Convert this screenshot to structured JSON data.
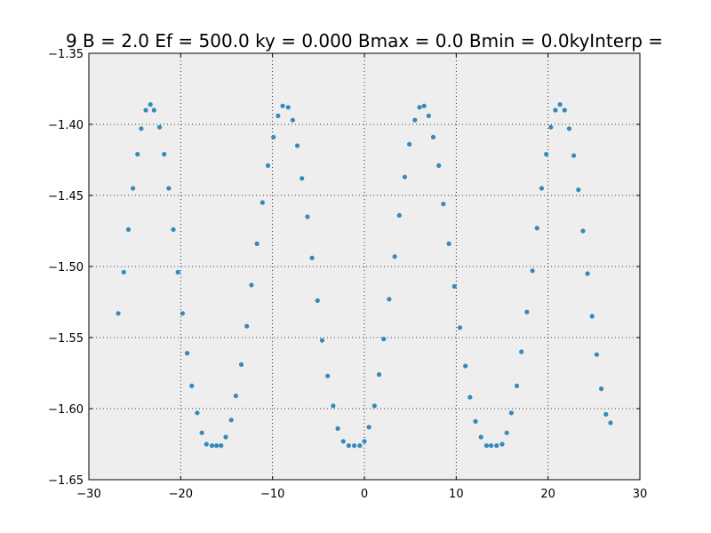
{
  "chart_data": {
    "type": "scatter",
    "title": "9 B = 2.0 Ef = 500.0 ky = 0.000 Bmax = 0.0 Bmin = 0.0kyInterp =",
    "xlabel": "",
    "ylabel": "",
    "xlim": [
      -30,
      30
    ],
    "ylim": [
      -1.65,
      -1.35
    ],
    "x_ticks": [
      -30,
      -20,
      -10,
      0,
      10,
      20,
      30
    ],
    "x_tick_labels": [
      "−30",
      "−20",
      "−10",
      "0",
      "10",
      "20",
      "30"
    ],
    "y_ticks": [
      -1.65,
      -1.6,
      -1.55,
      -1.5,
      -1.45,
      -1.4,
      -1.35
    ],
    "y_tick_labels": [
      "−1.65",
      "−1.60",
      "−1.55",
      "−1.50",
      "−1.45",
      "−1.40",
      "−1.35"
    ],
    "grid": true,
    "colors": {
      "marker": "#348ABD",
      "plot_background": "#EEEEEE",
      "grid": "#000000"
    },
    "series": [
      {
        "x": [
          -26.8,
          -26.2,
          -25.7,
          -25.2,
          -24.7,
          -24.3,
          -23.8,
          -23.3,
          -22.9,
          -22.3,
          -21.8,
          -21.3,
          -20.8,
          -20.3,
          -19.8,
          -19.3,
          -18.8,
          -18.2,
          -17.7,
          -17.2,
          -16.6,
          -16.1,
          -15.6,
          -15.1,
          -14.5,
          -14.0,
          -13.4,
          -12.8,
          -12.3,
          -11.7,
          -11.1,
          -10.5,
          -9.9,
          -9.4,
          -8.9,
          -8.3,
          -7.8,
          -7.3,
          -6.8,
          -6.2,
          -5.7,
          -5.1,
          -4.6,
          -4.0,
          -3.4,
          -2.9,
          -2.3,
          -1.7,
          -1.1,
          -0.5,
          0.0,
          0.5,
          1.1,
          1.6,
          2.1,
          2.7,
          3.3,
          3.8,
          4.4,
          4.9,
          5.5,
          6.0,
          6.5,
          7.0,
          7.5,
          8.1,
          8.6,
          9.2,
          9.8,
          10.4,
          11.0,
          11.5,
          12.1,
          12.7,
          13.3,
          13.8,
          14.4,
          15.0,
          15.5,
          16.0,
          16.6,
          17.1,
          17.7,
          18.3,
          18.8,
          19.3,
          19.8,
          20.3,
          20.8,
          21.3,
          21.8,
          22.3,
          22.8,
          23.3,
          23.8,
          24.3,
          24.8,
          25.3,
          25.8,
          26.3,
          26.8
        ],
        "y": [
          -1.533,
          -1.504,
          -1.474,
          -1.445,
          -1.421,
          -1.403,
          -1.39,
          -1.386,
          -1.39,
          -1.402,
          -1.421,
          -1.445,
          -1.474,
          -1.504,
          -1.533,
          -1.561,
          -1.584,
          -1.603,
          -1.617,
          -1.625,
          -1.626,
          -1.626,
          -1.626,
          -1.62,
          -1.608,
          -1.591,
          -1.569,
          -1.542,
          -1.513,
          -1.484,
          -1.455,
          -1.429,
          -1.409,
          -1.394,
          -1.387,
          -1.388,
          -1.397,
          -1.415,
          -1.438,
          -1.465,
          -1.494,
          -1.524,
          -1.552,
          -1.577,
          -1.598,
          -1.614,
          -1.623,
          -1.626,
          -1.626,
          -1.626,
          -1.623,
          -1.613,
          -1.598,
          -1.576,
          -1.551,
          -1.523,
          -1.493,
          -1.464,
          -1.437,
          -1.414,
          -1.397,
          -1.388,
          -1.387,
          -1.394,
          -1.409,
          -1.429,
          -1.456,
          -1.484,
          -1.514,
          -1.543,
          -1.57,
          -1.592,
          -1.609,
          -1.62,
          -1.626,
          -1.626,
          -1.626,
          -1.625,
          -1.617,
          -1.603,
          -1.584,
          -1.56,
          -1.532,
          -1.503,
          -1.473,
          -1.445,
          -1.421,
          -1.402,
          -1.39,
          -1.386,
          -1.39,
          -1.403,
          -1.422,
          -1.446,
          -1.475,
          -1.505,
          -1.535,
          -1.562,
          -1.586,
          -1.604,
          -1.61
        ]
      }
    ]
  }
}
